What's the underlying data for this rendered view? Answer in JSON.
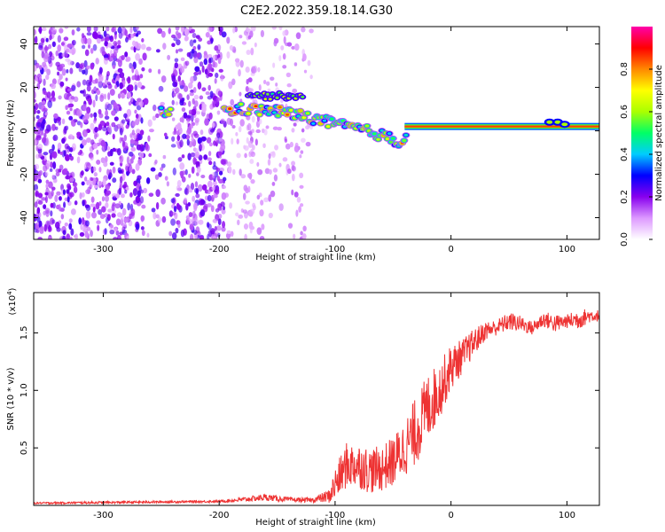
{
  "figure": {
    "title": "C2E2.2022.359.18.14.G30"
  },
  "chart_data": [
    {
      "type": "heatmap",
      "name": "spectrogram",
      "xlabel": "Height of straight line (km)",
      "ylabel": "Frequency (Hz)",
      "xlim": [
        -360,
        128
      ],
      "ylim": [
        -50,
        48
      ],
      "xticks": [
        -300,
        -200,
        -100,
        0,
        100
      ],
      "yticks": [
        -40,
        -20,
        0,
        20,
        40
      ],
      "colorbar": {
        "label": "Normalized spectral amplitude",
        "range": [
          0.0,
          1.0
        ],
        "ticks": [
          0.0,
          0.2,
          0.4,
          0.6,
          0.8
        ],
        "tick_labels": [
          "0.0",
          "0.2",
          "0.4",
          "0.6",
          "0.8"
        ],
        "colormap": [
          "#ffffff",
          "#dd99ff",
          "#8800ee",
          "#0000ff",
          "#00ccff",
          "#00ff66",
          "#aaff00",
          "#ffff00",
          "#ff8800",
          "#ff0000",
          "#ff00aa"
        ]
      },
      "features": {
        "noise_region_x": [
          -360,
          -120
        ],
        "ridge": [
          [
            -250,
            9
          ],
          [
            -195,
            9
          ],
          [
            -180,
            10
          ],
          [
            -150,
            9
          ],
          [
            -120,
            6
          ],
          [
            -100,
            3
          ],
          [
            -80,
            1
          ],
          [
            -60,
            -2
          ],
          [
            -45,
            -5
          ],
          [
            -35,
            -1
          ],
          [
            -20,
            2
          ],
          [
            0,
            2
          ],
          [
            80,
            3
          ],
          [
            128,
            2
          ]
        ],
        "upper_band": [
          [
            -175,
            17
          ],
          [
            -160,
            16
          ],
          [
            -140,
            16
          ],
          [
            -128,
            15
          ]
        ],
        "tone_frequency_hz": 2,
        "tone_x_range": [
          -40,
          128
        ]
      }
    },
    {
      "type": "line",
      "name": "snr",
      "xlabel": "Height of straight line (km)",
      "ylabel": "SNR (10 * v/v)",
      "y_multiplier": "(x10",
      "y_multiplier_exp": "4",
      "y_multiplier_close": ")",
      "xlim": [
        -360,
        128
      ],
      "ylim": [
        0,
        18500
      ],
      "xticks": [
        -300,
        -200,
        -100,
        0,
        100
      ],
      "yticks": [
        5000,
        10000,
        15000
      ],
      "ytick_labels": [
        "0.5",
        "1.0",
        "1.5"
      ],
      "color": "#ee3333",
      "series": [
        {
          "x": [
            -360,
            -300,
            -250,
            -200,
            -180,
            -160,
            -140,
            -120,
            -105,
            -100,
            -90,
            -80,
            -70,
            -60,
            -50,
            -40,
            -30,
            -20,
            -10,
            0,
            10,
            20,
            30,
            40,
            50,
            60,
            70,
            80,
            90,
            100,
            110,
            120,
            128
          ],
          "values": [
            200,
            250,
            300,
            350,
            500,
            700,
            500,
            450,
            800,
            1800,
            3500,
            3500,
            3000,
            3200,
            3800,
            5000,
            6500,
            8500,
            10000,
            12000,
            13000,
            14200,
            15200,
            15500,
            16000,
            15800,
            15400,
            16200,
            15800,
            16000,
            16200,
            16500,
            16500
          ],
          "jitter_amplitude": [
            80,
            100,
            100,
            100,
            200,
            300,
            200,
            200,
            600,
            1500,
            2000,
            2000,
            2000,
            2000,
            2200,
            2500,
            3000,
            3000,
            2500,
            2000,
            1500,
            1200,
            800,
            700,
            800,
            700,
            600,
            700,
            800,
            600,
            900,
            600,
            500
          ]
        }
      ]
    }
  ]
}
